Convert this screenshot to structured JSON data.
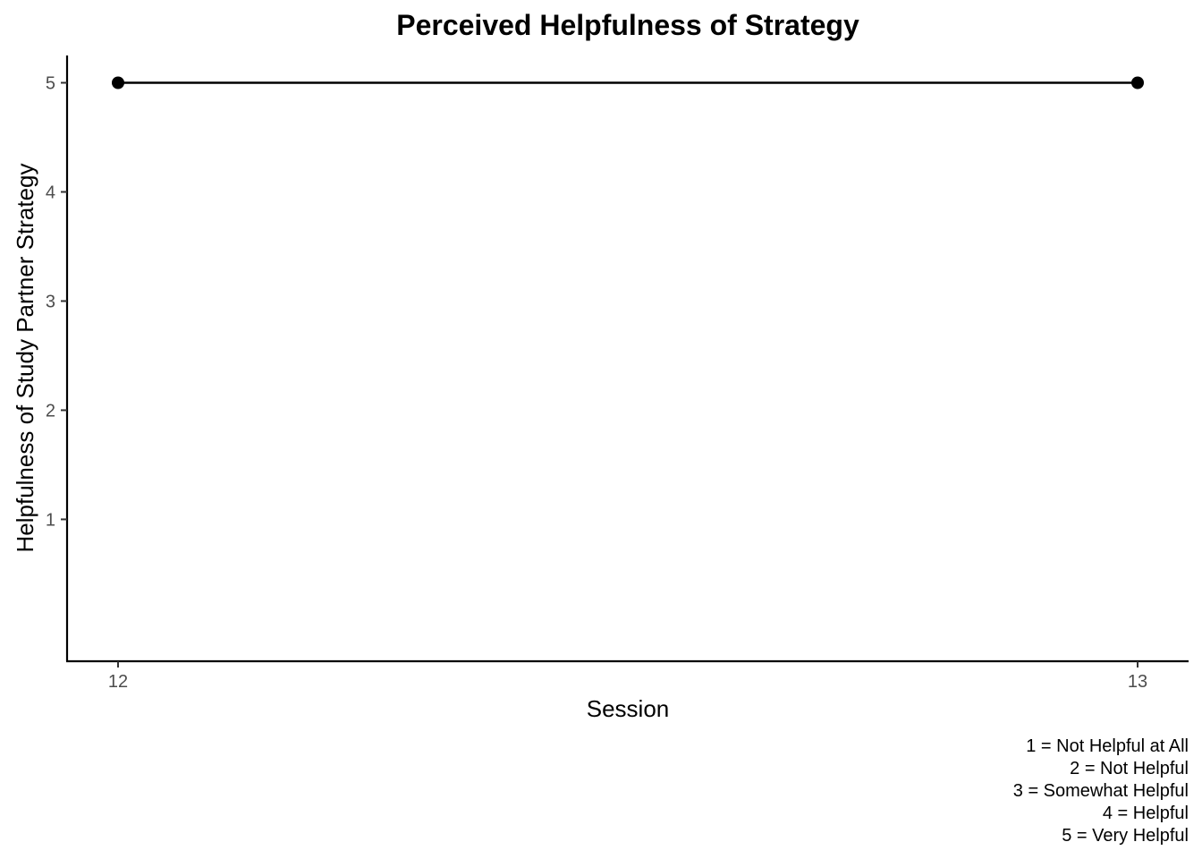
{
  "chart_data": {
    "type": "line",
    "title": "Perceived Helpfulness of Strategy",
    "xlabel": "Session",
    "ylabel": "Helpfulness of Study Partner Strategy",
    "x": [
      12,
      13
    ],
    "series": [
      {
        "values": [
          5,
          5
        ]
      }
    ],
    "x_ticks": [
      "12",
      "13"
    ],
    "y_ticks": [
      "1",
      "2",
      "3",
      "4",
      "5"
    ],
    "xlim": [
      11.95,
      13.05
    ],
    "ylim": [
      -0.3,
      5.25
    ],
    "grid": false,
    "colors": {
      "line": "#000000",
      "points": "#000000",
      "ticks": "#4d4d4d"
    },
    "caption": [
      "1 = Not Helpful at All",
      "2 = Not Helpful",
      "3 = Somewhat Helpful",
      "4 = Helpful",
      "5 = Very Helpful"
    ]
  }
}
